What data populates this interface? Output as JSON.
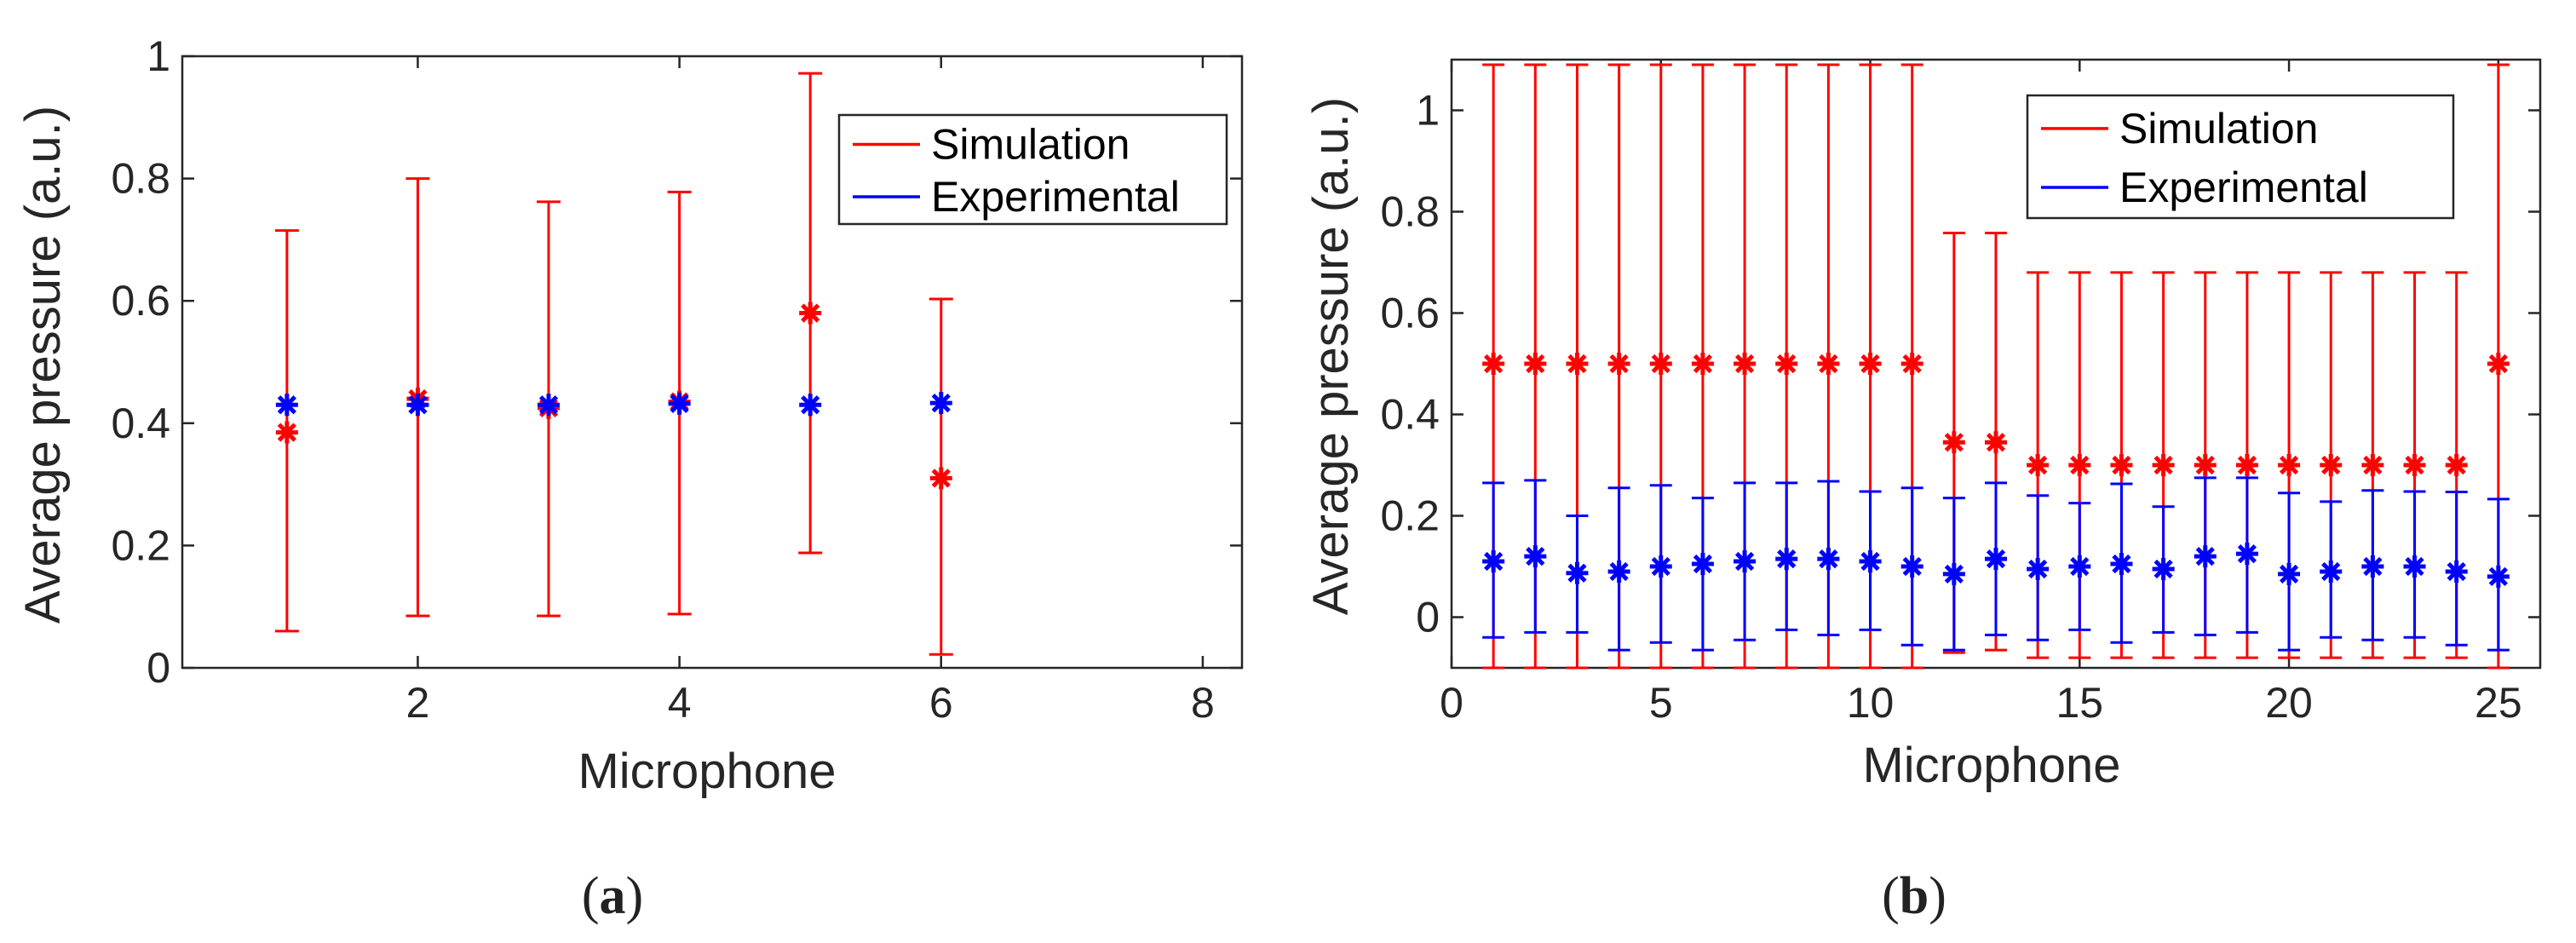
{
  "chart_data": [
    {
      "id": "a",
      "type": "scatter",
      "caption_open": "(",
      "caption_letter": "a",
      "caption_close": ")",
      "xlabel": "Microphone",
      "ylabel": "Average pressure (a.u.)",
      "xlim": [
        0.2,
        8.3
      ],
      "ylim": [
        0,
        1
      ],
      "xticks": [
        2,
        4,
        6,
        8
      ],
      "yticks": [
        0,
        0.2,
        0.4,
        0.6,
        0.8,
        1
      ],
      "ytick_labels": [
        "0",
        "0.2",
        "0.4",
        "0.6",
        "0.8",
        "1"
      ],
      "legend": {
        "placement": "top-right",
        "entries": [
          "Simulation",
          "Experimental"
        ]
      },
      "series": [
        {
          "name": "Simulation",
          "color": "#ff0000",
          "x": [
            1,
            2,
            3,
            4,
            5,
            6
          ],
          "y": [
            0.385,
            0.44,
            0.425,
            0.435,
            0.58,
            0.31
          ],
          "lower": [
            0.06,
            0.085,
            0.085,
            0.088,
            0.188,
            0.022
          ],
          "upper": [
            0.715,
            0.8,
            0.762,
            0.778,
            0.972,
            0.603
          ]
        },
        {
          "name": "Experimental",
          "color": "#0000ff",
          "x": [
            1,
            2,
            3,
            4,
            5,
            6
          ],
          "y": [
            0.43,
            0.43,
            0.43,
            0.432,
            0.43,
            0.433
          ],
          "lower": [
            0.43,
            0.43,
            0.43,
            0.432,
            0.43,
            0.433
          ],
          "upper": [
            0.43,
            0.43,
            0.43,
            0.432,
            0.43,
            0.433
          ]
        }
      ]
    },
    {
      "id": "b",
      "type": "scatter",
      "caption_open": "(",
      "caption_letter": "b",
      "caption_close": ")",
      "xlabel": "Microphone",
      "ylabel": "Average pressure (a.u.)",
      "xlim": [
        0,
        26
      ],
      "ylim": [
        -0.1,
        1.1
      ],
      "xticks": [
        0,
        5,
        10,
        15,
        20,
        25
      ],
      "yticks": [
        0,
        0.2,
        0.4,
        0.6,
        0.8,
        1
      ],
      "ytick_labels": [
        "0",
        "0.2",
        "0.4",
        "0.6",
        "0.8",
        "1"
      ],
      "legend": {
        "placement": "top-right",
        "entries": [
          "Simulation",
          "Experimental"
        ]
      },
      "series": [
        {
          "name": "Simulation",
          "color": "#ff0000",
          "x": [
            1,
            2,
            3,
            4,
            5,
            6,
            7,
            8,
            9,
            10,
            11,
            12,
            13,
            14,
            15,
            16,
            17,
            18,
            19,
            20,
            21,
            22,
            23,
            24,
            25
          ],
          "y": [
            0.5,
            0.5,
            0.5,
            0.5,
            0.5,
            0.5,
            0.5,
            0.5,
            0.5,
            0.5,
            0.5,
            0.345,
            0.345,
            0.3,
            0.3,
            0.3,
            0.3,
            0.3,
            0.3,
            0.3,
            0.3,
            0.3,
            0.3,
            0.3,
            0.5
          ],
          "lower": [
            -0.1,
            -0.1,
            -0.1,
            -0.1,
            -0.1,
            -0.1,
            -0.1,
            -0.1,
            -0.1,
            -0.1,
            -0.1,
            -0.07,
            -0.065,
            -0.08,
            -0.08,
            -0.08,
            -0.08,
            -0.08,
            -0.08,
            -0.08,
            -0.08,
            -0.08,
            -0.08,
            -0.08,
            -0.1
          ],
          "upper": [
            1.09,
            1.09,
            1.09,
            1.09,
            1.09,
            1.09,
            1.09,
            1.09,
            1.09,
            1.09,
            1.09,
            0.758,
            0.758,
            0.68,
            0.68,
            0.68,
            0.68,
            0.68,
            0.68,
            0.68,
            0.68,
            0.68,
            0.68,
            0.68,
            1.09
          ]
        },
        {
          "name": "Experimental",
          "color": "#0000ff",
          "x": [
            1,
            2,
            3,
            4,
            5,
            6,
            7,
            8,
            9,
            10,
            11,
            12,
            13,
            14,
            15,
            16,
            17,
            18,
            19,
            20,
            21,
            22,
            23,
            24,
            25
          ],
          "y": [
            0.11,
            0.12,
            0.087,
            0.09,
            0.1,
            0.105,
            0.11,
            0.115,
            0.115,
            0.11,
            0.1,
            0.085,
            0.115,
            0.095,
            0.1,
            0.105,
            0.095,
            0.12,
            0.125,
            0.085,
            0.09,
            0.1,
            0.1,
            0.09,
            0.08
          ],
          "lower": [
            -0.04,
            -0.03,
            -0.03,
            -0.065,
            -0.05,
            -0.065,
            -0.045,
            -0.025,
            -0.035,
            -0.025,
            -0.055,
            -0.065,
            -0.035,
            -0.045,
            -0.025,
            -0.05,
            -0.03,
            -0.035,
            -0.03,
            -0.065,
            -0.04,
            -0.045,
            -0.04,
            -0.055,
            -0.065
          ],
          "upper": [
            0.265,
            0.27,
            0.2,
            0.255,
            0.26,
            0.235,
            0.265,
            0.265,
            0.268,
            0.248,
            0.255,
            0.235,
            0.265,
            0.24,
            0.225,
            0.263,
            0.218,
            0.275,
            0.275,
            0.245,
            0.228,
            0.25,
            0.248,
            0.247,
            0.233
          ]
        }
      ]
    }
  ]
}
